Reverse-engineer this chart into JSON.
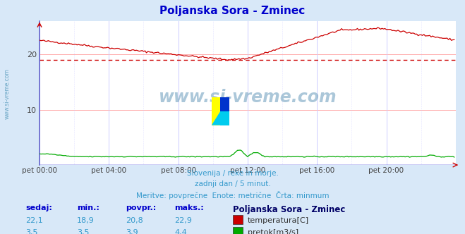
{
  "title": "Poljanska Sora - Zminec",
  "title_color": "#0000cc",
  "bg_color": "#d8e8f8",
  "plot_bg_color": "#ffffff",
  "grid_color_h": "#ffaaaa",
  "grid_color_v": "#ccccff",
  "xlabel_times": [
    "pet 00:00",
    "pet 04:00",
    "pet 08:00",
    "pet 12:00",
    "pet 16:00",
    "pet 20:00"
  ],
  "yticks": [
    10,
    20
  ],
  "ylim": [
    0,
    26
  ],
  "xlim": [
    0,
    288
  ],
  "temp_color": "#cc0000",
  "flow_color": "#00aa00",
  "left_axis_color": "#6666cc",
  "bottom_axis_color": "#0000cc",
  "avg_line_color": "#cc0000",
  "avg_line_value": 19.0,
  "watermark_color": "#3399cc",
  "footnote_color": "#3399cc",
  "footnote_lines": [
    "Slovenija / reke in morje.",
    "zadnji dan / 5 minut.",
    "Meritve: povprečne  Enote: metrične  Črta: minmum"
  ],
  "table_headers": [
    "sedaj:",
    "min.:",
    "povpr.:",
    "maks.:"
  ],
  "table_header_color": "#0000cc",
  "table_value_color": "#3399cc",
  "table_row1": [
    "22,1",
    "18,9",
    "20,8",
    "22,9"
  ],
  "table_row2": [
    "3,5",
    "3,5",
    "3,9",
    "4,4"
  ],
  "legend_title": "Poljanska Sora - Zminec",
  "legend_title_color": "#000066",
  "legend_entries": [
    "temperatura[C]",
    "pretok[m3/s]"
  ],
  "legend_colors": [
    "#cc0000",
    "#00aa00"
  ],
  "watermark_text": "www.si-vreme.com",
  "left_text": "www.si-vreme.com",
  "temp_min": 18.9,
  "temp_max": 22.9,
  "flow_near_bottom": 1.5
}
